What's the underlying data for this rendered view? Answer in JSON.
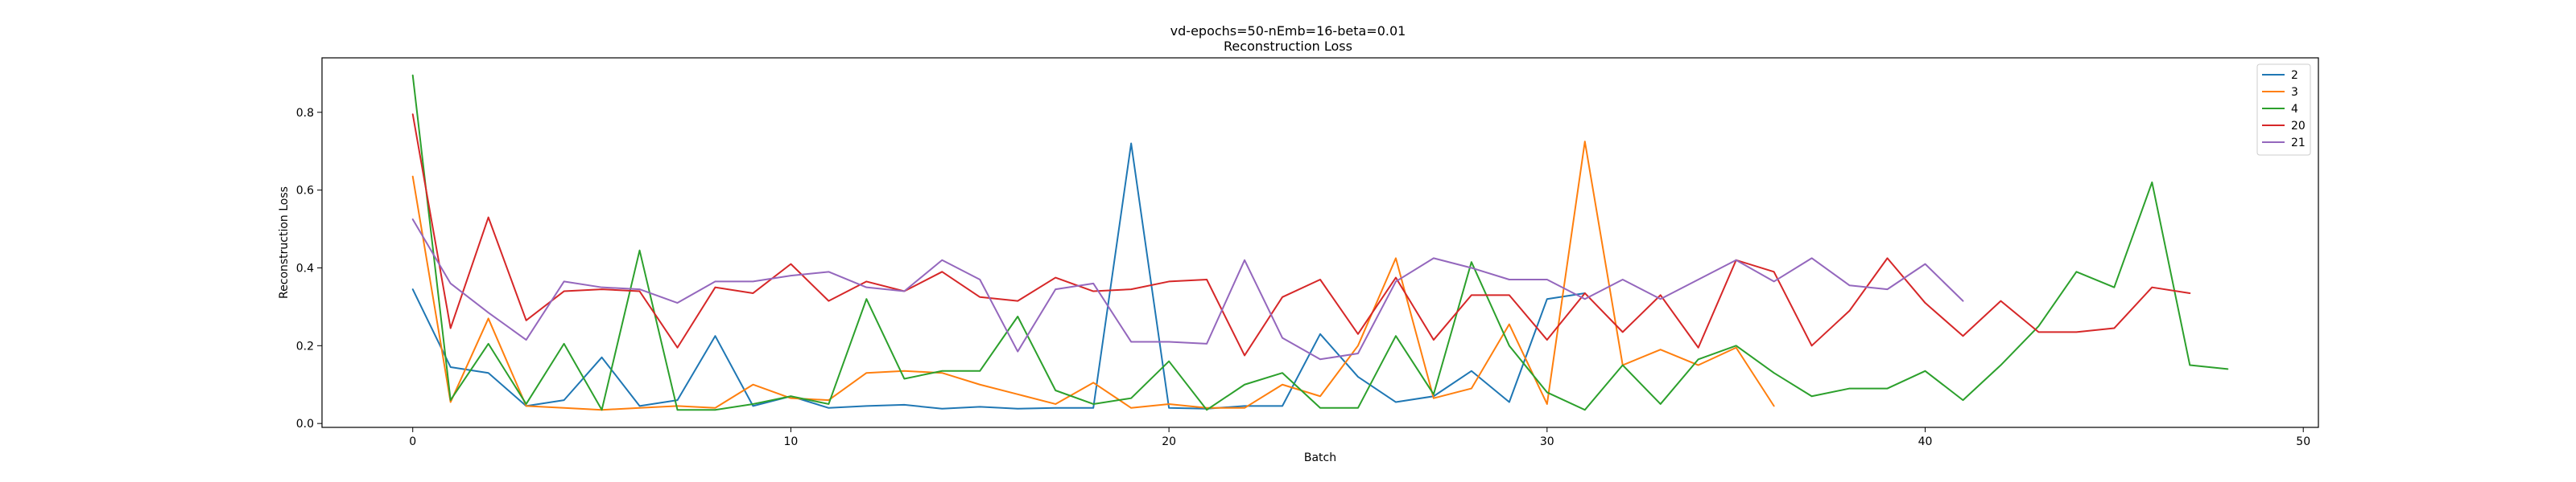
{
  "chart_data": {
    "type": "line",
    "title": "vd-epochs=50-nEmb=16-beta=0.01",
    "subtitle": "Reconstruction Loss",
    "xlabel": "Batch",
    "ylabel": "Reconstruction Loss",
    "xlim": [
      -2.4,
      50.4
    ],
    "ylim": [
      -0.01,
      0.94
    ],
    "xticks": [
      0,
      10,
      20,
      30,
      40,
      50
    ],
    "yticks": [
      0.0,
      0.2,
      0.4,
      0.6,
      0.8
    ],
    "xtick_labels": [
      "0",
      "10",
      "20",
      "30",
      "40",
      "50"
    ],
    "ytick_labels": [
      "0.0",
      "0.2",
      "0.4",
      "0.6",
      "0.8"
    ],
    "grid": false,
    "legend_position": "top-right",
    "series": [
      {
        "name": "2",
        "color": "#1f77b4",
        "x": [
          0,
          1,
          2,
          3,
          4,
          5,
          6,
          7,
          8,
          9,
          10,
          11,
          12,
          13,
          14,
          15,
          16,
          17,
          18,
          19,
          20,
          21,
          22,
          23,
          24,
          25,
          26,
          27,
          28,
          29,
          30,
          31
        ],
        "y": [
          0.345,
          0.145,
          0.13,
          0.045,
          0.06,
          0.17,
          0.045,
          0.06,
          0.225,
          0.045,
          0.07,
          0.04,
          0.045,
          0.048,
          0.038,
          0.043,
          0.038,
          0.04,
          0.04,
          0.72,
          0.04,
          0.038,
          0.045,
          0.045,
          0.23,
          0.12,
          0.055,
          0.07,
          0.135,
          0.055,
          0.32,
          0.335
        ]
      },
      {
        "name": "3",
        "color": "#ff7f0e",
        "x": [
          0,
          1,
          2,
          3,
          4,
          5,
          6,
          7,
          8,
          9,
          10,
          11,
          12,
          13,
          14,
          15,
          16,
          17,
          18,
          19,
          20,
          21,
          22,
          23,
          24,
          25,
          26,
          27,
          28,
          29,
          30,
          31,
          32,
          33,
          34,
          35,
          36
        ],
        "y": [
          0.635,
          0.055,
          0.27,
          0.045,
          0.04,
          0.035,
          0.04,
          0.045,
          0.04,
          0.1,
          0.065,
          0.06,
          0.13,
          0.135,
          0.13,
          0.1,
          0.075,
          0.05,
          0.105,
          0.04,
          0.05,
          0.04,
          0.04,
          0.1,
          0.07,
          0.2,
          0.425,
          0.065,
          0.09,
          0.255,
          0.05,
          0.725,
          0.15,
          0.19,
          0.15,
          0.195,
          0.045
        ]
      },
      {
        "name": "4",
        "color": "#2ca02c",
        "x": [
          0,
          1,
          2,
          3,
          4,
          5,
          6,
          7,
          8,
          9,
          10,
          11,
          12,
          13,
          14,
          15,
          16,
          17,
          18,
          19,
          20,
          21,
          22,
          23,
          24,
          25,
          26,
          27,
          28,
          29,
          30,
          31,
          32,
          33,
          34,
          35,
          36,
          37,
          38,
          39,
          40,
          41,
          42,
          43,
          44,
          45,
          46,
          47,
          48
        ],
        "y": [
          0.895,
          0.06,
          0.205,
          0.05,
          0.205,
          0.035,
          0.445,
          0.035,
          0.035,
          0.05,
          0.07,
          0.05,
          0.32,
          0.115,
          0.135,
          0.135,
          0.275,
          0.085,
          0.05,
          0.065,
          0.16,
          0.035,
          0.1,
          0.13,
          0.04,
          0.04,
          0.225,
          0.075,
          0.415,
          0.2,
          0.08,
          0.035,
          0.15,
          0.05,
          0.165,
          0.2,
          0.13,
          0.07,
          0.09,
          0.09,
          0.135,
          0.06,
          0.15,
          0.25,
          0.39,
          0.35,
          0.62,
          0.15,
          0.14
        ]
      },
      {
        "name": "20",
        "color": "#d62728",
        "x": [
          0,
          1,
          2,
          3,
          4,
          5,
          6,
          7,
          8,
          9,
          10,
          11,
          12,
          13,
          14,
          15,
          16,
          17,
          18,
          19,
          20,
          21,
          22,
          23,
          24,
          25,
          26,
          27,
          28,
          29,
          30,
          31,
          32,
          33,
          34,
          35,
          36,
          37,
          38,
          39,
          40,
          41,
          42,
          43,
          44,
          45,
          46,
          47
        ],
        "y": [
          0.795,
          0.245,
          0.53,
          0.265,
          0.34,
          0.345,
          0.34,
          0.195,
          0.35,
          0.335,
          0.41,
          0.315,
          0.365,
          0.34,
          0.39,
          0.325,
          0.315,
          0.375,
          0.34,
          0.345,
          0.365,
          0.37,
          0.175,
          0.325,
          0.37,
          0.23,
          0.375,
          0.215,
          0.33,
          0.33,
          0.215,
          0.335,
          0.235,
          0.33,
          0.195,
          0.42,
          0.39,
          0.2,
          0.29,
          0.425,
          0.31,
          0.225,
          0.315,
          0.235,
          0.235,
          0.245,
          0.35,
          0.335
        ]
      },
      {
        "name": "21",
        "color": "#9467bd",
        "x": [
          0,
          1,
          2,
          3,
          4,
          5,
          6,
          7,
          8,
          9,
          10,
          11,
          12,
          13,
          14,
          15,
          16,
          17,
          18,
          19,
          20,
          21,
          22,
          23,
          24,
          25,
          26,
          27,
          28,
          29,
          30,
          31,
          32,
          33,
          34,
          35,
          36,
          37,
          38,
          39,
          40,
          41
        ],
        "y": [
          0.525,
          0.36,
          0.285,
          0.215,
          0.365,
          0.35,
          0.345,
          0.31,
          0.365,
          0.365,
          0.38,
          0.39,
          0.35,
          0.34,
          0.42,
          0.37,
          0.185,
          0.345,
          0.36,
          0.21,
          0.21,
          0.205,
          0.42,
          0.22,
          0.165,
          0.18,
          0.365,
          0.425,
          0.4,
          0.37,
          0.37,
          0.32,
          0.37,
          0.32,
          0.37,
          0.42,
          0.365,
          0.425,
          0.355,
          0.345,
          0.41,
          0.315
        ]
      }
    ]
  }
}
